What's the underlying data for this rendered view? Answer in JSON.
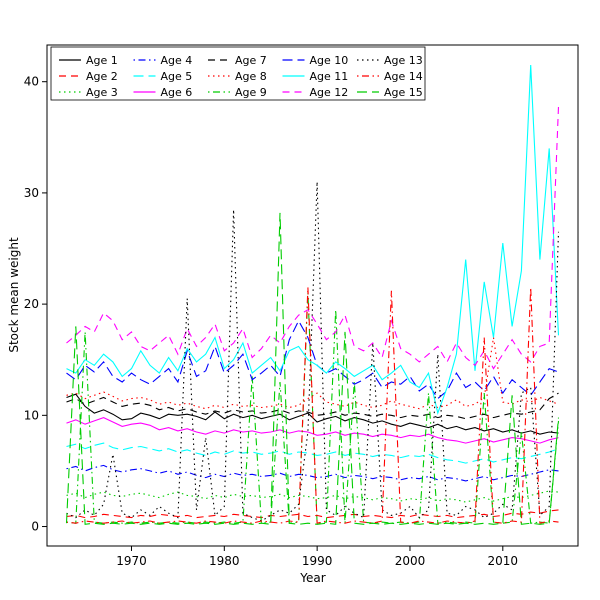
{
  "figure": {
    "background": "#FFFFFF",
    "frame_color": "#000000"
  },
  "chart_data": {
    "type": "line",
    "title": "",
    "xlabel": "Year",
    "ylabel": "Stock mean weight",
    "xlim": [
      1961,
      2018
    ],
    "ylim": [
      0,
      42
    ],
    "x_ticks": [
      1970,
      1980,
      1990,
      2000,
      2010
    ],
    "y_ticks": [
      0,
      10,
      20,
      30,
      40
    ],
    "grid": false,
    "legend_position": "top-inside",
    "legend_columns": 5,
    "x": [
      1963,
      1964,
      1965,
      1966,
      1967,
      1968,
      1969,
      1970,
      1971,
      1972,
      1973,
      1974,
      1975,
      1976,
      1977,
      1978,
      1979,
      1980,
      1981,
      1982,
      1983,
      1984,
      1985,
      1986,
      1987,
      1988,
      1989,
      1990,
      1991,
      1992,
      1993,
      1994,
      1995,
      1996,
      1997,
      1998,
      1999,
      2000,
      2001,
      2002,
      2003,
      2004,
      2005,
      2006,
      2007,
      2008,
      2009,
      2010,
      2011,
      2012,
      2013,
      2014,
      2015,
      2016
    ],
    "series": [
      {
        "name": "Age 1",
        "color": "#000000",
        "lty": "solid",
        "values": [
          11.6,
          11.9,
          10.8,
          10.2,
          10.5,
          10.1,
          9.6,
          9.7,
          10.2,
          10.0,
          9.7,
          10.1,
          10.0,
          10.1,
          9.9,
          9.6,
          10.3,
          9.7,
          10.1,
          9.8,
          10.0,
          9.7,
          9.9,
          10.1,
          9.6,
          9.9,
          10.2,
          9.4,
          9.7,
          9.9,
          9.5,
          9.8,
          9.6,
          9.3,
          9.5,
          9.2,
          9.0,
          9.3,
          9.1,
          8.9,
          9.2,
          8.8,
          9.0,
          8.7,
          8.9,
          8.6,
          8.8,
          8.5,
          8.7,
          8.4,
          8.6,
          8.3,
          8.5,
          8.4
        ]
      },
      {
        "name": "Age 2",
        "color": "#FF0000",
        "lty": "dashed",
        "values": [
          0.9,
          1.0,
          0.8,
          0.9,
          1.1,
          1.0,
          0.9,
          0.8,
          1.0,
          0.9,
          1.1,
          1.0,
          0.9,
          1.0,
          0.8,
          0.9,
          1.0,
          0.9,
          1.1,
          1.0,
          0.9,
          0.8,
          1.0,
          0.9,
          1.0,
          1.1,
          0.9,
          1.0,
          0.8,
          0.9,
          1.0,
          1.1,
          0.9,
          1.0,
          0.9,
          0.8,
          1.0,
          0.9,
          1.1,
          1.0,
          0.9,
          1.0,
          0.8,
          0.9,
          1.0,
          1.1,
          0.9,
          1.0,
          1.2,
          1.1,
          1.3,
          1.2,
          1.4,
          1.5
        ]
      },
      {
        "name": "Age 3",
        "color": "#00CC00",
        "lty": "dotted",
        "values": [
          2.8,
          3.0,
          2.6,
          2.9,
          3.1,
          2.8,
          2.7,
          2.9,
          3.0,
          2.8,
          2.6,
          2.9,
          3.1,
          2.8,
          2.7,
          2.5,
          2.8,
          2.6,
          2.9,
          2.7,
          2.8,
          2.6,
          2.7,
          2.9,
          2.6,
          2.8,
          2.7,
          2.5,
          2.6,
          2.8,
          2.5,
          2.7,
          2.6,
          2.4,
          2.6,
          2.5,
          2.3,
          2.5,
          2.4,
          2.6,
          2.3,
          2.5,
          2.4,
          2.2,
          2.4,
          2.6,
          2.3,
          2.5,
          2.7,
          2.6,
          2.8,
          3.0,
          3.2,
          3.1
        ]
      },
      {
        "name": "Age 4",
        "color": "#0000FF",
        "lty": "dotdash",
        "values": [
          5.2,
          5.4,
          5.0,
          5.3,
          5.5,
          5.1,
          4.9,
          5.1,
          5.2,
          5.0,
          4.8,
          5.0,
          4.7,
          4.9,
          4.6,
          4.4,
          4.7,
          4.5,
          4.8,
          4.6,
          4.7,
          4.5,
          4.6,
          4.8,
          4.5,
          4.7,
          4.6,
          4.4,
          4.5,
          4.7,
          4.4,
          4.6,
          4.5,
          4.3,
          4.5,
          4.4,
          4.2,
          4.4,
          4.3,
          4.5,
          4.2,
          4.4,
          4.3,
          4.1,
          4.3,
          4.5,
          4.2,
          4.4,
          4.6,
          4.5,
          4.7,
          4.9,
          5.1,
          5.0
        ]
      },
      {
        "name": "Age 5",
        "color": "#00FFFF",
        "lty": "longdash",
        "values": [
          7.2,
          7.4,
          7.0,
          7.3,
          7.5,
          7.1,
          6.9,
          7.1,
          7.2,
          7.0,
          6.8,
          7.0,
          6.7,
          6.9,
          6.6,
          6.4,
          6.7,
          6.5,
          6.8,
          6.6,
          6.7,
          6.5,
          6.6,
          6.8,
          6.5,
          6.7,
          6.6,
          6.4,
          6.5,
          6.7,
          6.4,
          6.6,
          6.5,
          6.3,
          6.5,
          6.4,
          6.2,
          6.4,
          6.3,
          6.5,
          6.2,
          6.0,
          5.9,
          5.7,
          5.9,
          6.1,
          5.8,
          6.0,
          6.2,
          6.1,
          6.3,
          6.5,
          6.7,
          7.0
        ]
      },
      {
        "name": "Age 6",
        "color": "#FF00FF",
        "lty": "solid",
        "values": [
          9.3,
          9.6,
          9.2,
          9.5,
          9.8,
          9.4,
          9.0,
          9.2,
          9.3,
          9.1,
          8.7,
          8.9,
          8.6,
          8.8,
          8.5,
          8.3,
          8.6,
          8.4,
          8.7,
          8.5,
          8.6,
          8.4,
          8.5,
          8.7,
          8.4,
          8.6,
          8.5,
          8.2,
          8.3,
          8.5,
          8.2,
          8.4,
          8.3,
          8.1,
          8.3,
          8.2,
          8.0,
          8.2,
          8.1,
          8.3,
          8.0,
          7.8,
          7.7,
          7.5,
          7.7,
          7.9,
          7.6,
          7.8,
          8.0,
          7.9,
          7.7,
          7.5,
          7.8,
          8.0
        ]
      },
      {
        "name": "Age 7",
        "color": "#000000",
        "lty": "dashed",
        "values": [
          11.2,
          11.5,
          11.0,
          11.3,
          11.6,
          11.2,
          10.8,
          11.0,
          11.1,
          10.9,
          10.5,
          10.7,
          10.4,
          10.6,
          10.3,
          10.1,
          10.4,
          10.2,
          10.5,
          10.3,
          10.4,
          10.2,
          10.3,
          10.5,
          10.2,
          10.4,
          10.3,
          10.0,
          10.1,
          10.3,
          10.0,
          10.2,
          10.1,
          9.9,
          10.1,
          10.0,
          9.8,
          10.0,
          9.9,
          10.1,
          9.8,
          10.0,
          9.9,
          9.7,
          9.9,
          10.1,
          9.8,
          10.0,
          10.2,
          10.1,
          10.3,
          10.5,
          11.5,
          12.0
        ]
      },
      {
        "name": "Age 8",
        "color": "#FF0000",
        "lty": "dotted",
        "values": [
          11.8,
          12.0,
          11.5,
          11.8,
          12.1,
          11.7,
          11.3,
          11.5,
          11.6,
          11.4,
          11.0,
          11.2,
          10.9,
          11.1,
          10.8,
          10.6,
          10.9,
          10.7,
          11.0,
          10.8,
          10.9,
          10.7,
          10.8,
          11.0,
          10.7,
          10.9,
          11.5,
          12.0,
          11.2,
          11.0,
          10.8,
          11.2,
          10.9,
          10.7,
          10.9,
          11.3,
          11.0,
          10.8,
          10.6,
          11.0,
          10.7,
          10.9,
          11.4,
          10.8,
          11.0,
          11.6,
          17.0,
          11.2,
          11.0,
          11.4,
          11.2,
          11.6,
          11.3,
          11.0
        ]
      },
      {
        "name": "Age 9",
        "color": "#00CC00",
        "lty": "dotdash",
        "values": [
          0.4,
          0.3,
          17.5,
          0.4,
          0.3,
          0.4,
          0.3,
          0.4,
          0.3,
          0.4,
          0.3,
          0.4,
          0.3,
          0.4,
          0.3,
          0.4,
          0.3,
          0.4,
          0.3,
          0.4,
          13.5,
          0.3,
          0.4,
          13.0,
          0.3,
          0.4,
          21.0,
          0.3,
          0.4,
          19.5,
          0.3,
          13.0,
          0.4,
          0.3,
          0.4,
          0.3,
          0.4,
          0.3,
          0.4,
          12.0,
          0.3,
          0.4,
          0.3,
          0.4,
          0.3,
          12.0,
          0.4,
          0.3,
          0.4,
          8.5,
          0.3,
          0.4,
          0.3,
          9.5
        ]
      },
      {
        "name": "Age 10",
        "color": "#0000FF",
        "lty": "longdash",
        "values": [
          13.8,
          13.2,
          14.5,
          13.9,
          14.8,
          13.5,
          13.0,
          13.8,
          13.2,
          12.8,
          13.5,
          14.2,
          13.0,
          15.8,
          13.5,
          14.0,
          16.2,
          13.8,
          14.5,
          15.5,
          13.2,
          13.8,
          14.5,
          13.5,
          16.8,
          18.5,
          17.0,
          14.5,
          13.8,
          14.2,
          13.5,
          12.8,
          13.2,
          13.8,
          12.5,
          13.0,
          12.8,
          13.5,
          12.2,
          12.8,
          11.5,
          12.2,
          13.8,
          12.5,
          13.0,
          12.2,
          13.5,
          12.0,
          13.2,
          12.5,
          11.8,
          13.0,
          14.2,
          13.9
        ]
      },
      {
        "name": "Age 11",
        "color": "#00FFFF",
        "lty": "solid",
        "values": [
          14.2,
          13.8,
          15.0,
          14.5,
          15.5,
          14.8,
          13.5,
          14.2,
          15.8,
          14.5,
          13.8,
          15.2,
          14.0,
          16.0,
          14.8,
          15.5,
          17.0,
          14.2,
          15.0,
          16.5,
          13.8,
          14.5,
          15.2,
          14.0,
          15.8,
          16.2,
          15.0,
          14.5,
          13.8,
          14.8,
          14.2,
          13.5,
          14.0,
          14.5,
          13.2,
          13.8,
          14.5,
          13.0,
          12.5,
          13.8,
          10.2,
          12.5,
          15.5,
          24.0,
          14.0,
          22.0,
          17.0,
          25.5,
          18.0,
          23.0,
          41.5,
          24.0,
          34.0,
          17.2
        ]
      },
      {
        "name": "Age 12",
        "color": "#FF00FF",
        "lty": "dashed",
        "values": [
          16.5,
          17.2,
          18.0,
          17.5,
          19.2,
          18.5,
          16.8,
          17.5,
          16.2,
          15.8,
          16.5,
          17.2,
          15.5,
          17.8,
          16.2,
          17.0,
          18.2,
          15.8,
          16.5,
          17.8,
          15.2,
          16.0,
          17.2,
          16.5,
          18.0,
          19.0,
          19.5,
          18.2,
          16.8,
          17.5,
          19.0,
          16.2,
          15.8,
          16.5,
          15.2,
          18.5,
          16.0,
          15.5,
          14.8,
          15.5,
          16.2,
          14.8,
          16.5,
          15.2,
          14.5,
          15.8,
          14.2,
          15.5,
          16.8,
          15.5,
          14.8,
          16.2,
          16.5,
          37.8
        ]
      },
      {
        "name": "Age 13",
        "color": "#000000",
        "lty": "dotted",
        "values": [
          1.2,
          0.8,
          1.5,
          1.0,
          2.0,
          6.5,
          1.2,
          0.8,
          1.5,
          1.0,
          1.8,
          1.2,
          0.8,
          20.5,
          1.5,
          8.0,
          1.0,
          1.8,
          28.5,
          1.2,
          0.8,
          0.5,
          1.0,
          1.5,
          1.2,
          2.0,
          8.5,
          31.0,
          1.5,
          1.0,
          1.8,
          1.2,
          0.8,
          16.5,
          1.5,
          1.0,
          1.2,
          1.8,
          0.8,
          1.5,
          15.5,
          1.2,
          1.0,
          1.8,
          1.5,
          0.8,
          1.2,
          2.0,
          1.5,
          12.0,
          12.5,
          1.0,
          1.8,
          26.5
        ]
      },
      {
        "name": "Age 14",
        "color": "#FF0000",
        "lty": "dotdash",
        "values": [
          0.4,
          0.3,
          0.5,
          0.4,
          0.3,
          0.4,
          0.5,
          0.3,
          0.4,
          0.5,
          0.3,
          0.4,
          0.5,
          0.4,
          0.3,
          0.5,
          0.4,
          0.3,
          0.5,
          0.4,
          0.3,
          0.5,
          0.4,
          0.3,
          0.5,
          0.4,
          21.5,
          0.3,
          0.5,
          0.4,
          0.3,
          0.5,
          0.4,
          0.3,
          0.5,
          21.2,
          0.4,
          0.3,
          0.5,
          0.4,
          0.3,
          0.5,
          0.4,
          0.3,
          0.5,
          17.0,
          0.4,
          0.3,
          0.5,
          0.4,
          21.5,
          0.3,
          0.5,
          0.4
        ]
      },
      {
        "name": "Age 15",
        "color": "#00CC00",
        "lty": "longdash",
        "values": [
          0.3,
          18.0,
          0.2,
          0.3,
          0.2,
          0.3,
          0.2,
          0.3,
          0.2,
          0.3,
          0.2,
          0.3,
          0.2,
          0.3,
          0.2,
          0.3,
          0.2,
          0.3,
          0.2,
          0.3,
          0.2,
          0.3,
          0.2,
          28.2,
          0.3,
          0.2,
          0.3,
          0.2,
          0.3,
          0.2,
          17.5,
          0.3,
          0.2,
          0.3,
          0.2,
          0.3,
          0.2,
          0.3,
          0.2,
          0.3,
          0.2,
          0.3,
          0.2,
          0.3,
          0.2,
          0.3,
          0.2,
          0.3,
          11.8,
          0.2,
          0.3,
          0.2,
          0.3,
          9.8
        ]
      }
    ]
  }
}
